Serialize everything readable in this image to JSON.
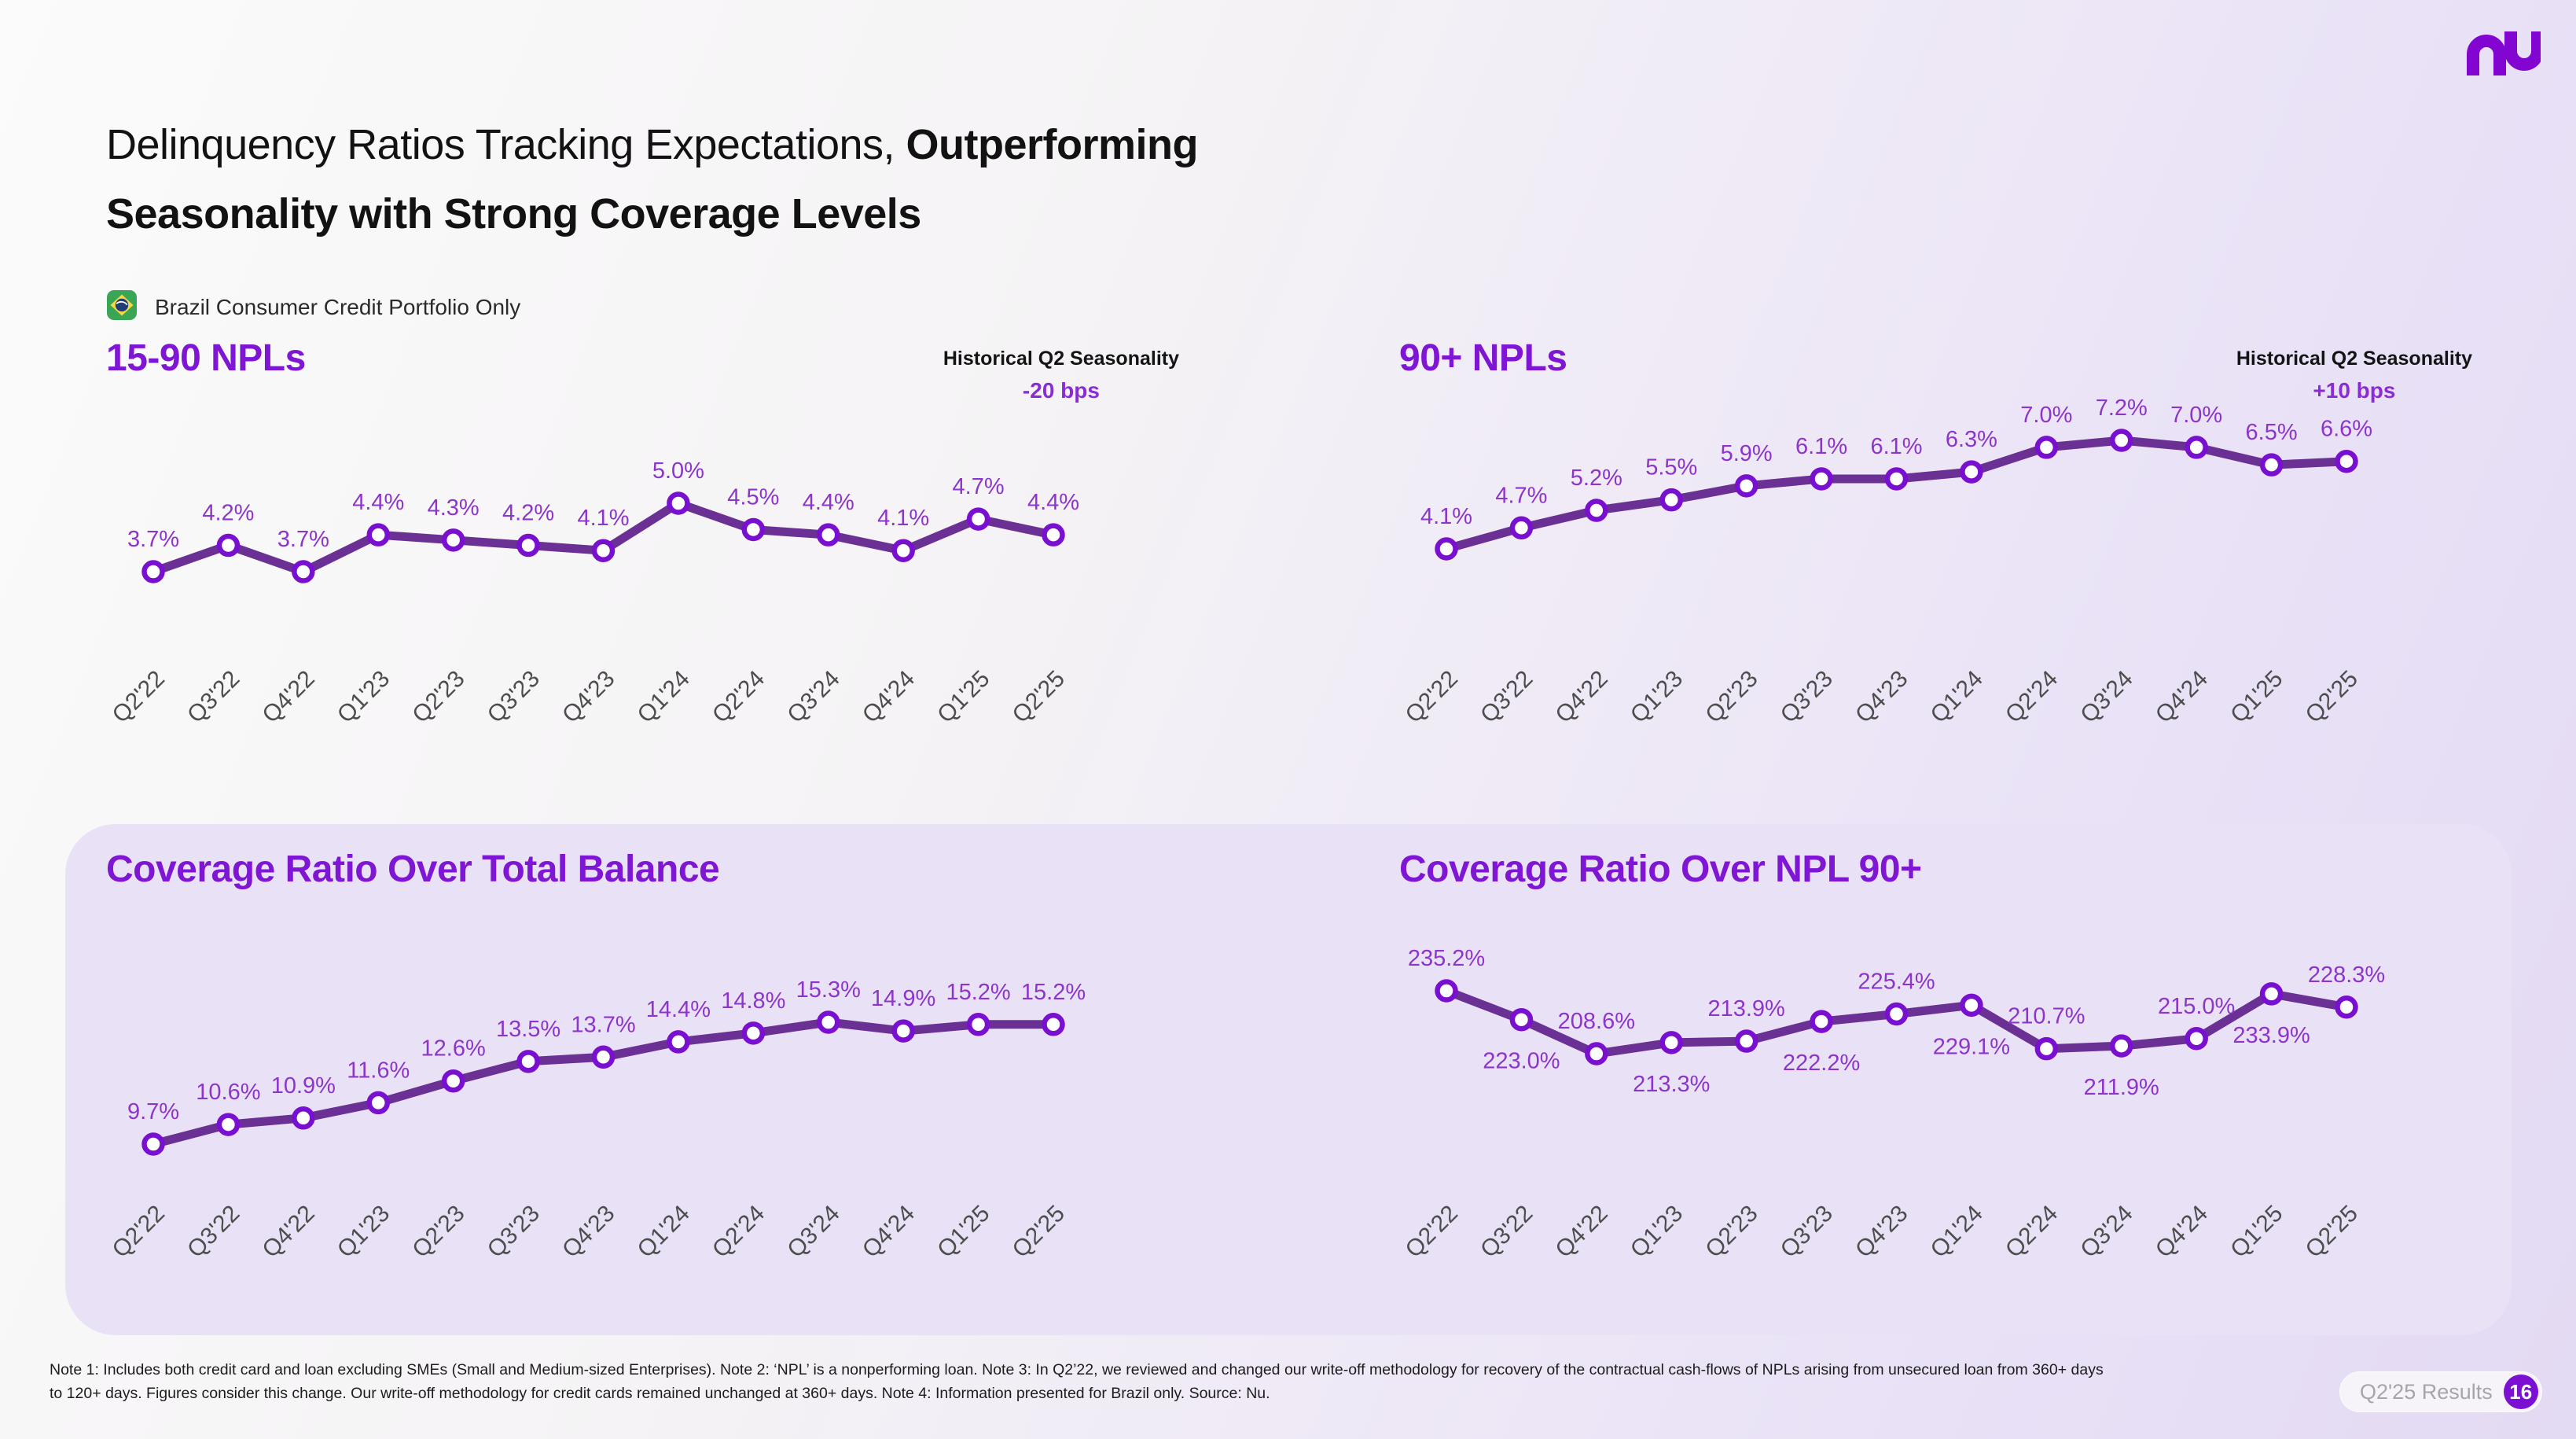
{
  "slide": {
    "title_lines": [
      {
        "normal": "Delinquency Ratios Tracking Expectations, ",
        "bold": "Outperforming"
      },
      {
        "normal": "",
        "bold": "Seasonality with Strong Coverage Levels"
      }
    ],
    "brand": "nu",
    "portfolio_label": "Brazil Consumer Credit Portfolio Only"
  },
  "colors": {
    "accent_purple": "#7b0fd2",
    "heading_purple": "#7e16d3",
    "bps_purple": "#8a2bd6",
    "line_purple": "#6b3094",
    "marker_purple": "#7a10cf",
    "label_purple": "#8d35cb",
    "panel_bg": "#e9e2f7",
    "flag_green": "#3aa655",
    "flag_yellow": "#f8d840",
    "flag_blue": "#1f3d7a"
  },
  "chart_data": [
    {
      "type": "line",
      "title": "15-90 NPLs",
      "seasonality": {
        "label": "Historical Q2 Seasonality",
        "value": "-20 bps"
      },
      "categories": [
        "Q2'22",
        "Q3'22",
        "Q4'22",
        "Q1'23",
        "Q2'23",
        "Q3'23",
        "Q4'23",
        "Q1'24",
        "Q2'24",
        "Q3'24",
        "Q4'24",
        "Q1'25",
        "Q2'25"
      ],
      "values": [
        3.7,
        4.2,
        3.7,
        4.4,
        4.3,
        4.2,
        4.1,
        5.0,
        4.5,
        4.4,
        4.1,
        4.7,
        4.4
      ],
      "labels": [
        "3.7%",
        "4.2%",
        "3.7%",
        "4.4%",
        "4.3%",
        "4.2%",
        "4.1%",
        "5.0%",
        "4.5%",
        "4.4%",
        "4.1%",
        "4.7%",
        "4.4%"
      ],
      "unit": "%",
      "axis": "none",
      "data_labels": true,
      "legend": "none"
    },
    {
      "type": "line",
      "title": "90+ NPLs",
      "seasonality": {
        "label": "Historical Q2 Seasonality",
        "value": "+10 bps"
      },
      "categories": [
        "Q2'22",
        "Q3'22",
        "Q4'22",
        "Q1'23",
        "Q2'23",
        "Q3'23",
        "Q4'23",
        "Q1'24",
        "Q2'24",
        "Q3'24",
        "Q4'24",
        "Q1'25",
        "Q2'25"
      ],
      "values": [
        4.1,
        4.7,
        5.2,
        5.5,
        5.9,
        6.1,
        6.1,
        6.3,
        7.0,
        7.2,
        7.0,
        6.5,
        6.6
      ],
      "labels": [
        "4.1%",
        "4.7%",
        "5.2%",
        "5.5%",
        "5.9%",
        "6.1%",
        "6.1%",
        "6.3%",
        "7.0%",
        "7.2%",
        "7.0%",
        "6.5%",
        "6.6%"
      ],
      "unit": "%",
      "axis": "none",
      "data_labels": true,
      "legend": "none"
    },
    {
      "type": "line",
      "title": "Coverage Ratio Over Total Balance",
      "categories": [
        "Q2'22",
        "Q3'22",
        "Q4'22",
        "Q1'23",
        "Q2'23",
        "Q3'23",
        "Q4'23",
        "Q1'24",
        "Q2'24",
        "Q3'24",
        "Q4'24",
        "Q1'25",
        "Q2'25"
      ],
      "values": [
        9.7,
        10.6,
        10.9,
        11.6,
        12.6,
        13.5,
        13.7,
        14.4,
        14.8,
        15.3,
        14.9,
        15.2,
        15.2
      ],
      "labels": [
        "9.7%",
        "10.6%",
        "10.9%",
        "11.6%",
        "12.6%",
        "13.5%",
        "13.7%",
        "14.4%",
        "14.8%",
        "15.3%",
        "14.9%",
        "15.2%",
        "15.2%"
      ],
      "unit": "%",
      "axis": "none",
      "data_labels": true,
      "legend": "none"
    },
    {
      "type": "line",
      "title": "Coverage Ratio Over NPL 90+",
      "categories": [
        "Q2'22",
        "Q3'22",
        "Q4'22",
        "Q1'23",
        "Q2'23",
        "Q3'23",
        "Q4'23",
        "Q1'24",
        "Q2'24",
        "Q3'24",
        "Q4'24",
        "Q1'25",
        "Q2'25"
      ],
      "values": [
        235.2,
        223.0,
        208.6,
        213.3,
        213.9,
        222.2,
        225.4,
        229.1,
        210.7,
        211.9,
        215.0,
        233.9,
        228.3
      ],
      "labels": [
        "235.2%",
        "223.0%",
        "208.6%",
        "213.3%",
        "213.9%",
        "222.2%",
        "225.4%",
        "229.1%",
        "210.7%",
        "211.9%",
        "215.0%",
        "233.9%",
        "228.3%"
      ],
      "unit": "%",
      "axis": "none",
      "data_labels": true,
      "label_placement": "alternate",
      "legend": "none"
    }
  ],
  "footer": {
    "notes_lines": [
      "Note 1: Includes both credit card and loan excluding SMEs (Small and Medium-sized Enterprises). Note 2: ‘NPL’ is a nonperforming loan. Note 3: In Q2’22, we reviewed and changed our write-off methodology for recovery of the contractual cash-flows of NPLs arising from unsecured loan from 360+ days",
      "to 120+ days. Figures consider this change. Our write-off methodology for credit cards remained unchanged at 360+ days. Note 4: Information presented for Brazil only. Source: Nu."
    ],
    "results_label": "Q2'25 Results",
    "page_number": "16"
  }
}
